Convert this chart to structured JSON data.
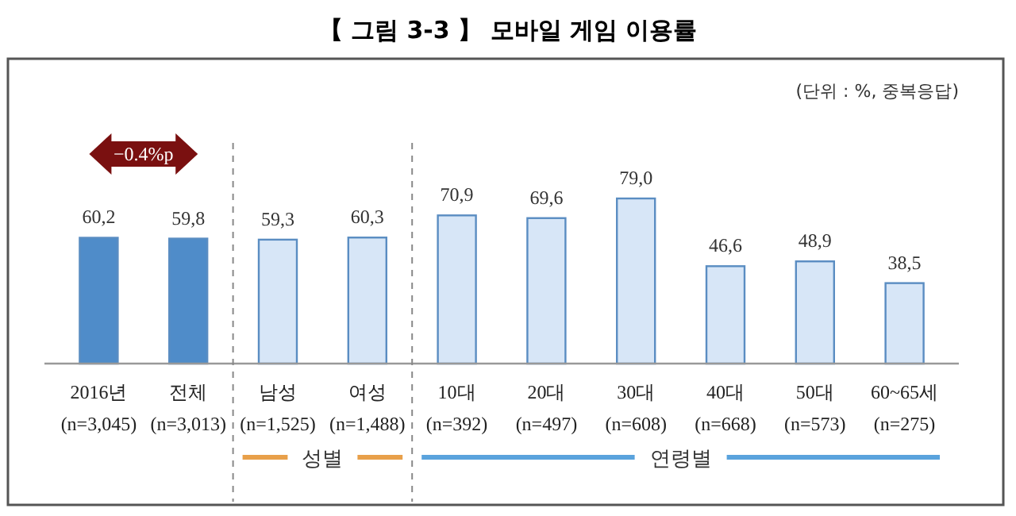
{
  "chart_data": {
    "type": "bar",
    "title": "【 그림 3-3 】 모바일 게임 이용률",
    "categories": [
      "2016년\n(n=3,045)",
      "전체\n(n=3,013)",
      "남성\n(n=1,525)",
      "여성\n(n=1,488)",
      "10대\n(n=392)",
      "20대\n(n=497)",
      "30대\n(n=608)",
      "40대\n(n=668)",
      "50대\n(n=573)",
      "60~65세\n(n=275)"
    ],
    "values": [
      60.2,
      59.8,
      59.3,
      60.3,
      70.9,
      69.6,
      79.0,
      46.6,
      48.9,
      38.5
    ],
    "colors": [
      "#4f8cc9",
      "#4f8cc9",
      "#d7e6f7",
      "#d7e6f7",
      "#d7e6f7",
      "#d7e6f7",
      "#d7e6f7",
      "#d7e6f7",
      "#d7e6f7",
      "#d7e6f7"
    ],
    "value_labels": [
      "60,2",
      "59,8",
      "59,3",
      "60,3",
      "70,9",
      "69,6",
      "79,0",
      "46,6",
      "48,9",
      "38,5"
    ],
    "relative": false,
    "annotations": [
      "(단위 : %, 중복응답)",
      "−0.4%p",
      "성별",
      "연령별"
    ]
  }
}
